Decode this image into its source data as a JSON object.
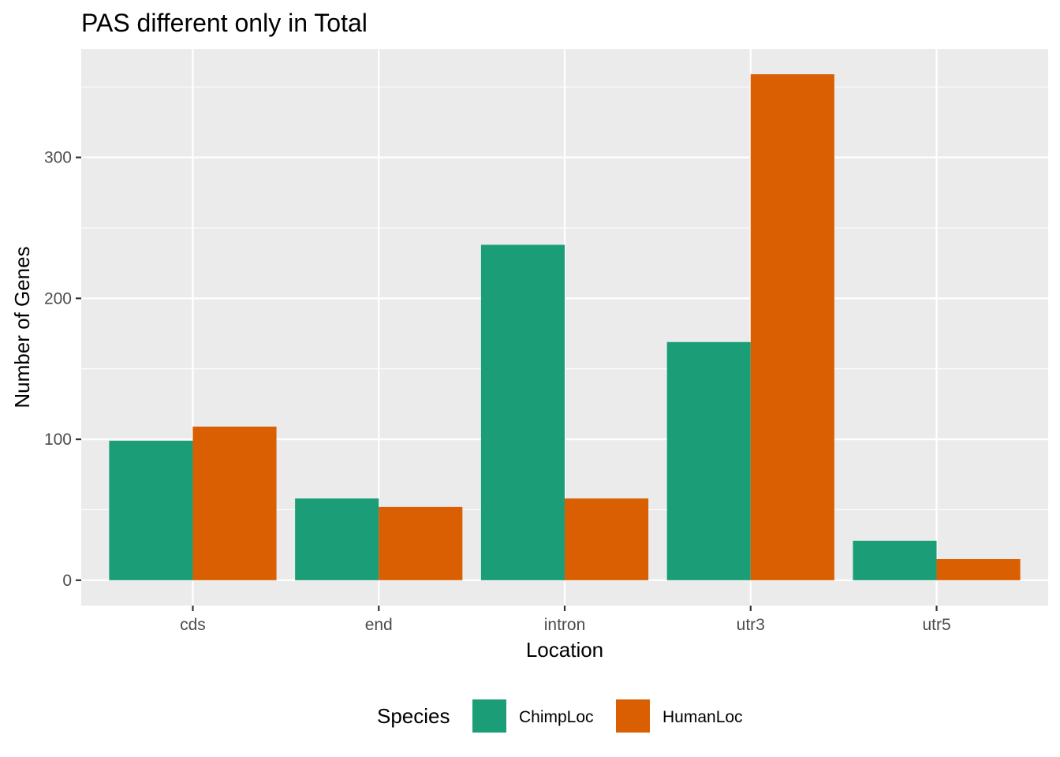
{
  "chart_data": {
    "type": "bar",
    "title": "PAS different only in Total",
    "xlabel": "Location",
    "ylabel": "Number of Genes",
    "categories": [
      "cds",
      "end",
      "intron",
      "utr3",
      "utr5"
    ],
    "series": [
      {
        "name": "ChimpLoc",
        "color": "#1b9e77",
        "values": [
          99,
          58,
          238,
          169,
          28
        ]
      },
      {
        "name": "HumanLoc",
        "color": "#d95f02",
        "values": [
          109,
          52,
          58,
          359,
          15
        ]
      }
    ],
    "ylim": [
      -18,
      377
    ],
    "yticks": [
      0,
      100,
      200,
      300
    ],
    "ytick_labels": [
      "0",
      "100",
      "200",
      "300"
    ],
    "grid": true,
    "panel_background": "#ebebeb",
    "legend": {
      "title": "Species",
      "position": "bottom"
    }
  }
}
